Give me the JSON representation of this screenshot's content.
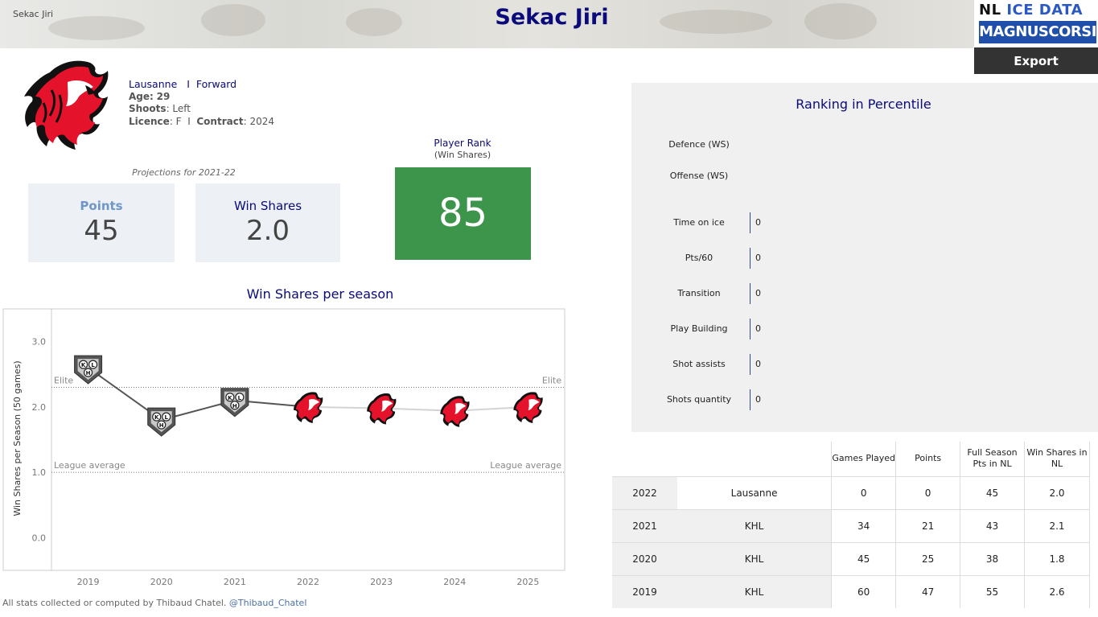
{
  "header": {
    "left_label": "Sekac Jiri",
    "title": "Sekac Jiri",
    "logo_line1_a": "NL",
    "logo_line1_b": "ICE DATA",
    "logo_line2": "MAGNUSCORSI",
    "export_label": "Export"
  },
  "player": {
    "team": "Lausanne",
    "separator": "I",
    "position": "Forward",
    "age_label": "Age:",
    "age": "29",
    "shoots_label": "Shoots",
    "shoots": "Left",
    "licence_label": "Licence",
    "licence": "F",
    "contract_label": "Contract",
    "contract": "2024"
  },
  "projections": {
    "label": "Projections for 2021-22",
    "points_label": "Points",
    "points_value": "45",
    "ws_label": "Win Shares",
    "ws_value": "2.0"
  },
  "player_rank": {
    "title": "Player Rank",
    "subtitle": "(Win Shares)",
    "value": "85",
    "color": "#3d944b"
  },
  "chart": {
    "title": "Win Shares per season",
    "ylabel": "Win Shares per Season (50 games)",
    "elite_label": "Elite",
    "avg_label": "League average"
  },
  "chart_data": {
    "type": "line",
    "title": "Win Shares per season",
    "xlabel": "",
    "ylabel": "Win Shares per Season (50 games)",
    "categories": [
      "2019",
      "2020",
      "2021",
      "2022",
      "2023",
      "2024",
      "2025"
    ],
    "values": [
      2.6,
      1.8,
      2.1,
      2.0,
      1.98,
      1.94,
      2.0
    ],
    "markers": [
      "KHL",
      "KHL",
      "KHL",
      "Lausanne",
      "Lausanne",
      "Lausanne",
      "Lausanne"
    ],
    "yticks": [
      "3.0",
      "2.0",
      "1.0",
      "0.0"
    ],
    "ylim": [
      -0.5,
      3.5
    ],
    "reference_lines": [
      {
        "label": "Elite",
        "value": 2.3
      },
      {
        "label": "League average",
        "value": 1.0
      }
    ]
  },
  "ranking": {
    "title": "Ranking in Percentile",
    "rows": [
      {
        "label": "Defence (WS)",
        "value": ""
      },
      {
        "label": "Offense (WS)",
        "value": ""
      },
      {
        "label": "Time on ice",
        "value": "0"
      },
      {
        "label": "Pts/60",
        "value": "0"
      },
      {
        "label": "Transition",
        "value": "0"
      },
      {
        "label": "Play Building",
        "value": "0"
      },
      {
        "label": "Shot assists",
        "value": "0"
      },
      {
        "label": "Shots quantity",
        "value": "0"
      }
    ]
  },
  "table": {
    "headers": [
      "Games Played",
      "Points",
      "Full Season Pts in NL",
      "Win Shares in NL"
    ],
    "rows": [
      {
        "year": "2022",
        "league": "Lausanne",
        "gp": "0",
        "pts": "0",
        "full": "45",
        "ws": "2.0"
      },
      {
        "year": "2021",
        "league": "KHL",
        "gp": "34",
        "pts": "21",
        "full": "43",
        "ws": "2.1"
      },
      {
        "year": "2020",
        "league": "KHL",
        "gp": "45",
        "pts": "25",
        "full": "38",
        "ws": "1.8"
      },
      {
        "year": "2019",
        "league": "KHL",
        "gp": "60",
        "pts": "47",
        "full": "55",
        "ws": "2.6"
      }
    ]
  },
  "footer": {
    "text": "All stats collected or computed by Thibaud Chatel.",
    "handle": "@Thibaud_Chatel"
  }
}
